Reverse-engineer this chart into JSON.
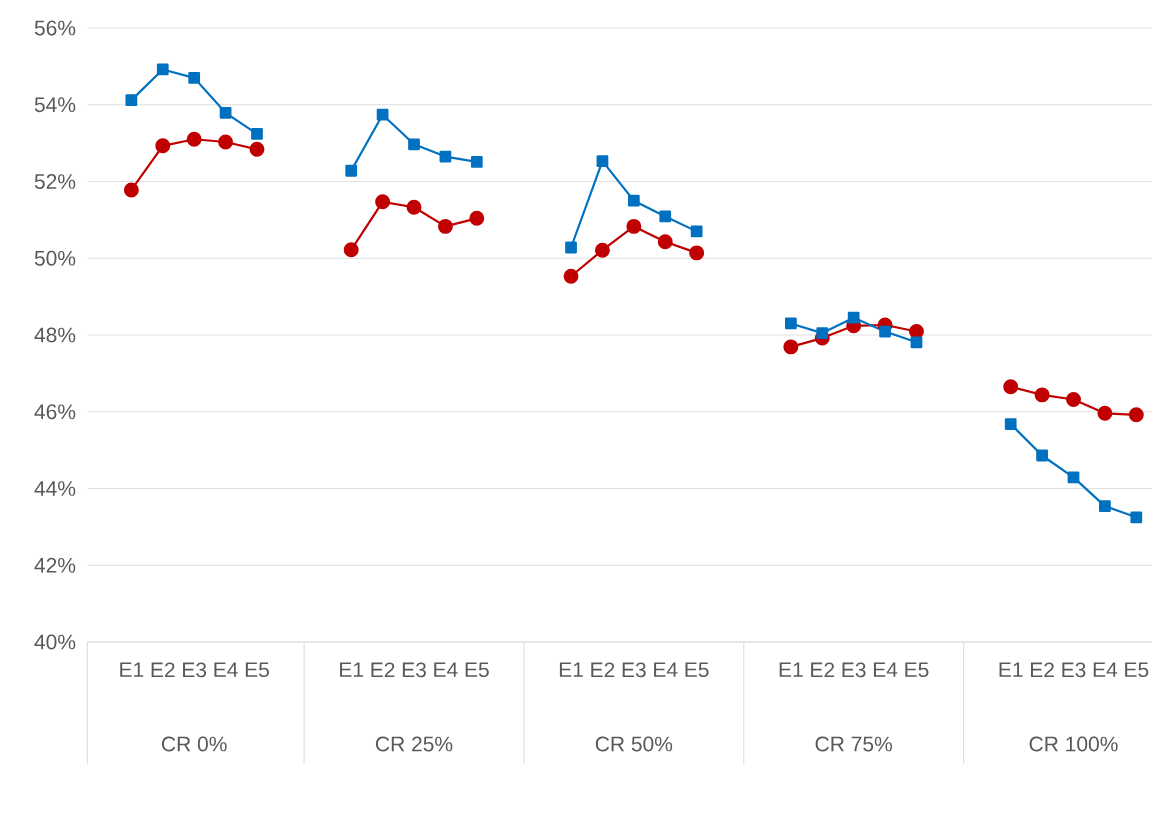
{
  "chart_data": {
    "type": "line",
    "categories": [
      "E1",
      "E2",
      "E3",
      "E4",
      "E5",
      null,
      null,
      "E1",
      "E2",
      "E3",
      "E4",
      "E5",
      null,
      null,
      "E1",
      "E2",
      "E3",
      "E4",
      "E5",
      null,
      null,
      "E1",
      "E2",
      "E3",
      "E4",
      "E5",
      null,
      null,
      "E1",
      "E2",
      "E3",
      "E4",
      "E5"
    ],
    "series": [
      {
        "color": "#c00000",
        "marker": "circle",
        "values": [
          51.78,
          52.93,
          53.1,
          53.03,
          52.84,
          null,
          null,
          50.22,
          51.47,
          51.33,
          50.83,
          51.04,
          null,
          null,
          49.53,
          50.21,
          50.83,
          50.43,
          50.14,
          null,
          null,
          47.69,
          47.92,
          48.24,
          48.26,
          48.09,
          null,
          null,
          46.65,
          46.44,
          46.32,
          45.96,
          45.92
        ]
      },
      {
        "color": "#0070c0",
        "marker": "square",
        "values": [
          54.12,
          54.92,
          54.7,
          53.79,
          53.24,
          null,
          null,
          52.28,
          53.74,
          52.97,
          52.65,
          52.51,
          null,
          null,
          50.28,
          52.53,
          51.5,
          51.09,
          50.7,
          null,
          null,
          48.3,
          48.05,
          48.45,
          48.09,
          47.81,
          null,
          null,
          45.68,
          44.86,
          44.29,
          43.54,
          43.25
        ]
      }
    ],
    "ylim": [
      40,
      56
    ],
    "yticks": [
      {
        "value": 40,
        "label": "40%"
      },
      {
        "value": 42,
        "label": "42%"
      },
      {
        "value": 44,
        "label": "44%"
      },
      {
        "value": 46,
        "label": "46%"
      },
      {
        "value": 48,
        "label": "48%"
      },
      {
        "value": 50,
        "label": "50%"
      },
      {
        "value": 52,
        "label": "52%"
      },
      {
        "value": 54,
        "label": "54%"
      },
      {
        "value": 56,
        "label": "56%"
      }
    ],
    "grid": "y",
    "line_style": "solid",
    "annotations": [
      "CR 0%",
      "CR 25%",
      "CR 50%",
      "CR 75%",
      "CR 100%"
    ]
  }
}
